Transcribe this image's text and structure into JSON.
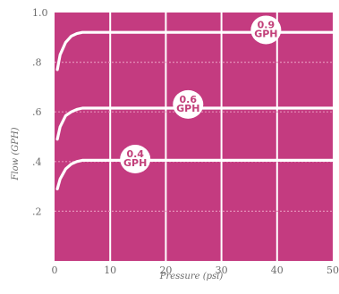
{
  "chart_data": {
    "type": "line",
    "xlabel": "Pressure (psi)",
    "ylabel": "Flow (GPH)",
    "xlim": [
      0,
      50
    ],
    "ylim": [
      0,
      1.0
    ],
    "x_ticks": [
      "0",
      "10",
      "20",
      "30",
      "40",
      "50"
    ],
    "y_ticks": [
      ".2",
      ".4",
      ".6",
      ".8",
      "1.0"
    ],
    "grid": true,
    "series": [
      {
        "name": "0.9 GPH",
        "label_lines": [
          "0.9",
          "GPH"
        ],
        "label_at": [
          38,
          0.93
        ],
        "x": [
          0.5,
          1,
          2,
          3,
          4,
          5,
          6,
          50
        ],
        "y": [
          0.77,
          0.83,
          0.88,
          0.905,
          0.915,
          0.92,
          0.92,
          0.92
        ]
      },
      {
        "name": "0.6 GPH",
        "label_lines": [
          "0.6",
          "GPH"
        ],
        "label_at": [
          24,
          0.63
        ],
        "x": [
          0.5,
          1,
          2,
          3,
          4,
          5,
          6,
          50
        ],
        "y": [
          0.49,
          0.54,
          0.585,
          0.6,
          0.61,
          0.615,
          0.615,
          0.615
        ]
      },
      {
        "name": "0.4 GPH",
        "label_lines": [
          "0.4",
          "GPH"
        ],
        "label_at": [
          14.5,
          0.41
        ],
        "x": [
          0.5,
          1,
          2,
          3,
          4,
          5,
          6,
          50
        ],
        "y": [
          0.29,
          0.33,
          0.37,
          0.39,
          0.4,
          0.405,
          0.405,
          0.405
        ]
      }
    ],
    "colors": {
      "background": "#c43b80",
      "curve": "#ffffff",
      "grid": "#e58fb8",
      "badge_fill": "#ffffff",
      "badge_text": "#c2407a",
      "tick_text": "#6b6b6b"
    }
  }
}
